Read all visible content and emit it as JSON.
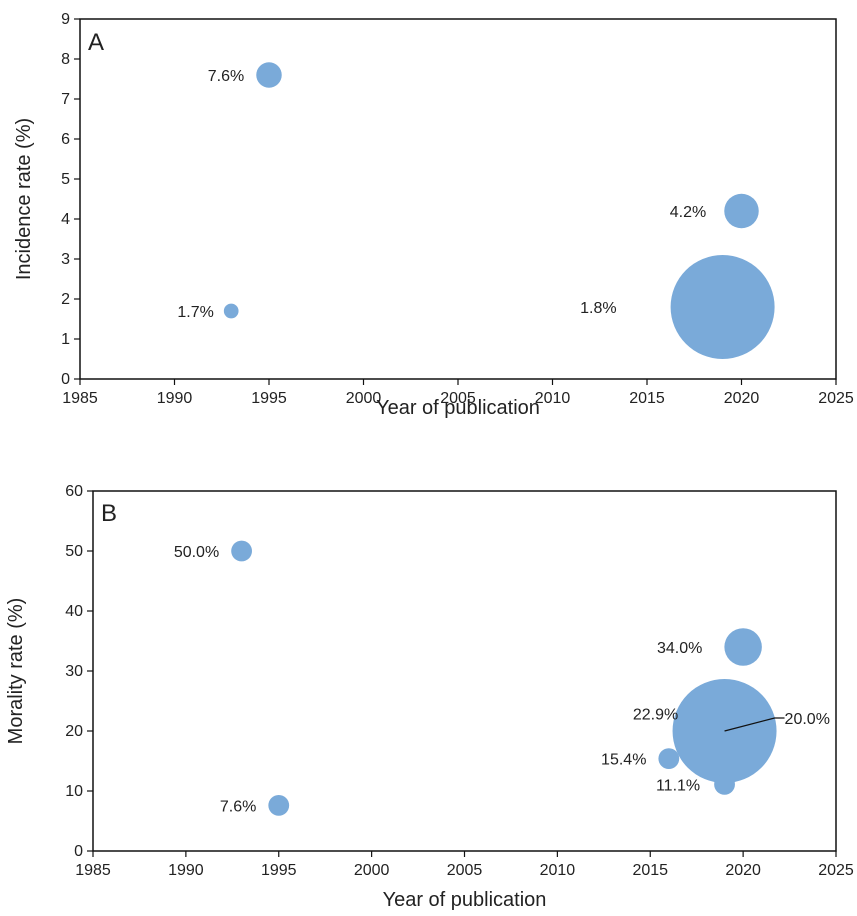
{
  "chart_data": [
    {
      "type": "scatter",
      "panel_label": "A",
      "xlabel": "Year of publication",
      "ylabel": "Incidence rate (%)",
      "xlim": [
        1985,
        2025
      ],
      "ylim": [
        0,
        9
      ],
      "xticks": [
        "1985",
        "1990",
        "1995",
        "2000",
        "2005",
        "2010",
        "2015",
        "2020",
        "2025"
      ],
      "yticks": [
        "0",
        "1",
        "2",
        "3",
        "4",
        "5",
        "6",
        "7",
        "8",
        "9"
      ],
      "grid": false,
      "color": "#7aaad9",
      "points": [
        {
          "x": 1995.0,
          "y": 7.6,
          "label": "7.6%",
          "relative_size": 0.06
        },
        {
          "x": 1993.0,
          "y": 1.7,
          "label": "1.7%",
          "relative_size": 0.02
        },
        {
          "x": 2020.0,
          "y": 4.2,
          "label": "4.2%",
          "relative_size": 0.11
        },
        {
          "x": 2019.0,
          "y": 1.8,
          "label": "1.8%",
          "relative_size": 1.0
        }
      ]
    },
    {
      "type": "scatter",
      "panel_label": "B",
      "xlabel": "Year of publication",
      "ylabel": "Morality rate (%)",
      "xlim": [
        1985,
        2025
      ],
      "ylim": [
        0,
        60
      ],
      "xticks": [
        "1985",
        "1990",
        "1995",
        "2000",
        "2005",
        "2010",
        "2015",
        "2020",
        "2025"
      ],
      "yticks": [
        "0",
        "10",
        "20",
        "30",
        "40",
        "50",
        "60"
      ],
      "grid": false,
      "color": "#7aaad9",
      "points": [
        {
          "x": 1993.0,
          "y": 50.0,
          "label": "50.0%",
          "relative_size": 0.04
        },
        {
          "x": 1995.0,
          "y": 7.6,
          "label": "7.6%",
          "relative_size": 0.04
        },
        {
          "x": 2020.0,
          "y": 34.0,
          "label": "34.0%",
          "relative_size": 0.13
        },
        {
          "x": 2018.0,
          "y": 22.9,
          "label": "22.9%",
          "relative_size": 0.07
        },
        {
          "x": 2016.0,
          "y": 15.4,
          "label": "15.4%",
          "relative_size": 0.04
        },
        {
          "x": 2019.0,
          "y": 11.1,
          "label": "11.1%",
          "relative_size": 0.04
        },
        {
          "x": 2019.0,
          "y": 20.0,
          "label": "20.0%",
          "relative_size": 1.0
        }
      ]
    }
  ]
}
